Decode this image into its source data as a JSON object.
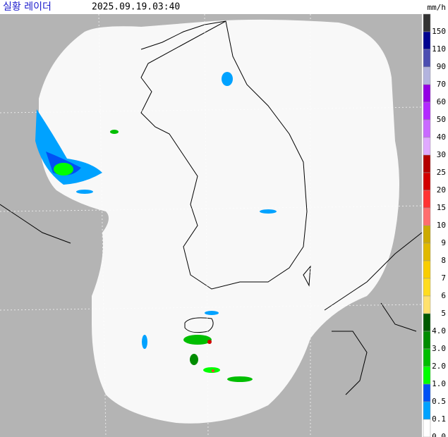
{
  "header": {
    "title": "실황 레이더",
    "timestamp": "2025.09.19.03:40",
    "unit": "mm/h"
  },
  "legend": [
    {
      "label": "150",
      "color": "#333333"
    },
    {
      "label": "110",
      "color": "#000390"
    },
    {
      "label": "90",
      "color": "#4c4eb1"
    },
    {
      "label": "70",
      "color": "#b3b4de"
    },
    {
      "label": "60",
      "color": "#9300e4"
    },
    {
      "label": "50",
      "color": "#b229ff"
    },
    {
      "label": "40",
      "color": "#c969ff"
    },
    {
      "label": "30",
      "color": "#e0a9ff"
    },
    {
      "label": "25",
      "color": "#b40000"
    },
    {
      "label": "20",
      "color": "#d20000"
    },
    {
      "label": "15",
      "color": "#ff3232"
    },
    {
      "label": "10",
      "color": "#ff6e6e"
    },
    {
      "label": "9",
      "color": "#ccaa00"
    },
    {
      "label": "8",
      "color": "#e0b900"
    },
    {
      "label": "7",
      "color": "#f9cd00"
    },
    {
      "label": "6",
      "color": "#ffdc1f"
    },
    {
      "label": "5",
      "color": "#ffe16e"
    },
    {
      "label": "4.0",
      "color": "#005a00"
    },
    {
      "label": "3.0",
      "color": "#008c00"
    },
    {
      "label": "2.0",
      "color": "#00be00"
    },
    {
      "label": "1.0",
      "color": "#00ff00"
    },
    {
      "label": "0.5",
      "color": "#0051f5"
    },
    {
      "label": "0.1",
      "color": "#00a2ff"
    },
    {
      "label": "0.0",
      "color": "#ffffff"
    }
  ]
}
